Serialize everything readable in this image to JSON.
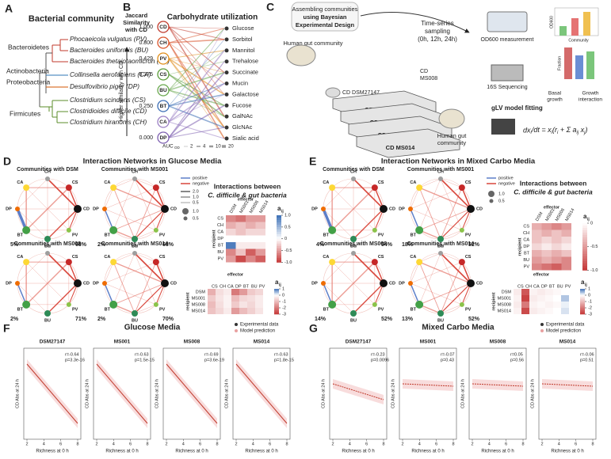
{
  "A": {
    "letter": "A",
    "title": "Bacterial community",
    "phyla": [
      {
        "name": "Bacteroidetes",
        "color": "#c0392b"
      },
      {
        "name": "Actinobacteria",
        "color": "#2e75b6"
      },
      {
        "name": "Proteobacteria",
        "color": "#d35400"
      },
      {
        "name": "Firmicutes",
        "color": "#5b8c2a"
      }
    ],
    "species": [
      {
        "name": "Phocaeicola vulgatus (PV)",
        "phylum": 0
      },
      {
        "name": "Bacteroides uniformis (BU)",
        "phylum": 0
      },
      {
        "name": "Bacteroides thetaiotaomicron (BT)",
        "phylum": 0
      },
      {
        "name": "Collinsella aerofaciens (CA)",
        "phylum": 1
      },
      {
        "name": "Desulfovibrio piger (DP)",
        "phylum": 2
      },
      {
        "name": "Clostridium scindens (CS)",
        "phylum": 3
      },
      {
        "name": "Clostridioides difficile (CD)",
        "phylum": 3
      },
      {
        "name": "Clostridium hiranonis (CH)",
        "phylum": 3
      }
    ]
  },
  "B": {
    "letter": "B",
    "title": "Carbohydrate utilization",
    "y_label": [
      "Jaccard",
      "Similarity",
      "with CD"
    ],
    "arrow_label": "Higher similarity with CD",
    "nodes": [
      "CD",
      "CH",
      "PV",
      "CS",
      "BU",
      "BT",
      "CA",
      "DP"
    ],
    "node_colors": [
      "#c0392b",
      "#d9542b",
      "#e08e1b",
      "#5b9c3a",
      "#6aa84f",
      "#3d6fb6",
      "#9b7fc4",
      "#7d5fb0"
    ],
    "similarity": [
      "1.000",
      "0.800",
      "0.429",
      "0.375",
      null,
      "0.250",
      null,
      "0.000"
    ],
    "carbohydrates": [
      "Glucose",
      "Sorbitol",
      "Mannitol",
      "Trehalose",
      "Succinate",
      "Mucin",
      "Galactose",
      "Fucose",
      "GalNAc",
      "GlcNAc",
      "Sialic acid"
    ],
    "auc_label": "AUC",
    "auc_sub": "OD",
    "auc_ticks": [
      "2",
      "4",
      "10",
      "20"
    ]
  },
  "C": {
    "letter": "C",
    "design": [
      "Assembling communities",
      "using Bayesian",
      "Experimental Design"
    ],
    "sampling": [
      "Time-series",
      "sampling",
      "(0h, 12h, 24h)"
    ],
    "human_gut": [
      "Human gut community"
    ],
    "cd_strain": "CD DSM27147",
    "cd_ms008": [
      "CD",
      "MS008"
    ],
    "stack": [
      "CD DSM",
      "CD MS001",
      "CD MS008",
      "CD MS014"
    ],
    "human_gut_right": [
      "Human gut",
      "community"
    ],
    "od600": "OD600 measurement",
    "seq": "16S Sequencing",
    "glv": "gLV model fitting",
    "basal": [
      "Basal",
      "growth"
    ],
    "growth_int": [
      "Growth",
      "interaction"
    ],
    "bar_labels": [
      "OD600",
      "Community",
      "Fraction"
    ]
  },
  "D": {
    "letter": "D",
    "title": "Interaction Networks in Glucose Media",
    "networks": [
      {
        "title": "Communities with DSM",
        "left": "5%",
        "right": "68%"
      },
      {
        "title": "Communities with MS001",
        "left": "2%",
        "right": "68%"
      },
      {
        "title": "Communities with MS008",
        "left": "2%",
        "right": "71%"
      },
      {
        "title": "Communities with MS014",
        "left": "2%",
        "right": "70%"
      }
    ],
    "heat_title": [
      "Interactions between",
      "C. difficile & gut bacteria"
    ],
    "top": {
      "rows": [
        "CS",
        "CH",
        "CA",
        "DP",
        "BT",
        "BU",
        "PV"
      ],
      "cols": [
        "DSM",
        "MS001",
        "MS008",
        "MS014"
      ],
      "clim": [
        -1,
        1
      ],
      "ticks": [
        {
          "value": 1,
          "label": "1.0"
        },
        0.5,
        0,
        -0.5,
        {
          "value": -1,
          "label": "-1.0"
        }
      ],
      "values": [
        [
          -0.6,
          -0.7,
          -0.5,
          -0.5
        ],
        [
          -0.4,
          -0.3,
          -0.4,
          -0.3
        ],
        [
          -0.2,
          -0.3,
          -0.2,
          -0.2
        ],
        [
          0,
          0,
          0,
          0
        ],
        [
          0.9,
          -0.1,
          -0.1,
          -0.1
        ],
        [
          -0.6,
          -0.3,
          -0.8,
          -0.5
        ],
        [
          -0.5,
          -0.9,
          -0.6,
          -0.8
        ]
      ]
    },
    "bottom": {
      "rows": [
        "DSM",
        "MS001",
        "MS008",
        "MS014"
      ],
      "cols": [
        "CS",
        "CH",
        "CA",
        "DP",
        "BT",
        "BU",
        "PV"
      ],
      "clim": [
        -3,
        1
      ],
      "ticks": [
        1,
        0,
        -1,
        -2,
        -3
      ],
      "values": [
        [
          -1.2,
          -0.5,
          -0.3,
          -2.0,
          -1.5,
          -0.8,
          -0.6
        ],
        [
          -0.8,
          -0.4,
          -0.2,
          -1.0,
          -0.6,
          -0.5,
          -0.3
        ],
        [
          -1.0,
          -0.5,
          -0.2,
          -0.8,
          -0.4,
          -0.6,
          -0.3
        ],
        [
          -0.9,
          -0.6,
          -0.3,
          -1.5,
          -1.0,
          -0.7,
          -0.4
        ]
      ]
    }
  },
  "E": {
    "letter": "E",
    "title": "Interaction Networks in Mixed Carbo Media",
    "networks": [
      {
        "title": "Communities with DSM",
        "left": "4%",
        "right": "54%"
      },
      {
        "title": "Communities with MS001",
        "left": "18%",
        "right": "52%"
      },
      {
        "title": "Communities with MS008",
        "left": "14%",
        "right": "52%"
      },
      {
        "title": "Communities with MS014",
        "left": "13%",
        "right": "52%"
      }
    ],
    "heat_title": [
      "Interactions between",
      "C. difficile & gut bacteria"
    ],
    "top": {
      "rows": [
        "CS",
        "CH",
        "CA",
        "DP",
        "BT",
        "BU",
        "PV"
      ],
      "cols": [
        "DSM",
        "MS001",
        "MS008",
        "MS014"
      ],
      "clim": [
        -1,
        0
      ],
      "ticks": [
        0,
        -0.5,
        {
          "value": -1,
          "label": "-1.0"
        }
      ],
      "values": [
        [
          -0.4,
          -0.5,
          -0.6,
          -0.5
        ],
        [
          -0.3,
          -0.4,
          -0.3,
          -0.4
        ],
        [
          -0.3,
          -0.2,
          -0.3,
          -0.2
        ],
        [
          -0.2,
          -0.1,
          -0.2,
          -0.1
        ],
        [
          -0.4,
          -0.3,
          -0.4,
          -0.3
        ],
        [
          -0.5,
          -0.4,
          -0.5,
          -0.6
        ],
        [
          -0.6,
          -0.7,
          -0.8,
          -0.6
        ]
      ]
    },
    "bottom": {
      "rows": [
        "DSM",
        "MS001",
        "MS008",
        "MS014"
      ],
      "cols": [
        "CS",
        "CH",
        "CA",
        "DP",
        "BT",
        "BU",
        "PV"
      ],
      "clim": [
        -3,
        1
      ],
      "ticks": [
        1,
        0,
        -1,
        -2,
        -3
      ],
      "values": [
        [
          -0.3,
          -2.5,
          -0.2,
          -0.3,
          -0.2,
          -0.1,
          0
        ],
        [
          -0.2,
          -2.8,
          -0.3,
          -0.2,
          -0.1,
          0,
          0.4
        ],
        [
          -0.3,
          -2.0,
          -0.2,
          -0.1,
          -0.2,
          -0.1,
          0.1
        ],
        [
          -0.2,
          -2.7,
          -0.3,
          -0.2,
          -0.1,
          0,
          0.2
        ]
      ]
    }
  },
  "network": {
    "nodes": [
      "CH",
      "CS",
      "CD",
      "PV",
      "BU",
      "BT",
      "DP",
      "CA"
    ],
    "colors": [
      "#9e9e9e",
      "#c62828",
      "#111111",
      "#8bc34a",
      "#2e8b57",
      "#43a047",
      "#ef6c00",
      "#fdd835"
    ],
    "positive": "positive",
    "negative": "negative",
    "weights": [
      "2.0",
      "1.0",
      "0.5"
    ],
    "sizes": [
      "1.0",
      "0.5"
    ],
    "effector": "effector",
    "recipient": "recipient",
    "scale": "a",
    "scale_sub": "ij"
  },
  "F": {
    "letter": "F",
    "title": "Glucose Media",
    "legend": [
      "Experimental data",
      "Model prediction"
    ],
    "plots": [
      {
        "title": "DSM27147",
        "stats": [
          "r=-0.64",
          "p=3.3e-16"
        ]
      },
      {
        "title": "MS001",
        "stats": [
          "r=-0.63",
          "p=1.5e-15"
        ]
      },
      {
        "title": "MS008",
        "stats": [
          "r=-0.69",
          "p=3.6e-19"
        ]
      },
      {
        "title": "MS014",
        "stats": [
          "r=-0.63",
          "p=1.8e-15"
        ]
      }
    ],
    "x_label": "Richness at 0 h",
    "y_label": "CD Abs at 24 h",
    "xticks": [
      2,
      4,
      6,
      8
    ]
  },
  "G": {
    "letter": "G",
    "title": "Mixed Carbo Media",
    "legend": [
      "Experimental data",
      "Model prediction"
    ],
    "plots": [
      {
        "title": "DSM27147",
        "stats": [
          "r=-0.23",
          "p=0.0096"
        ]
      },
      {
        "title": "MS001",
        "stats": [
          "r=-0.07",
          "p=0.43"
        ]
      },
      {
        "title": "MS008",
        "stats": [
          "r=0.05",
          "p=0.56"
        ]
      },
      {
        "title": "MS014",
        "stats": [
          "r=-0.06",
          "p=0.51"
        ]
      }
    ],
    "x_label": "Richness at 0 h",
    "y_label": "CD Abs at 24 h",
    "xticks": [
      2,
      4,
      6,
      8
    ]
  }
}
